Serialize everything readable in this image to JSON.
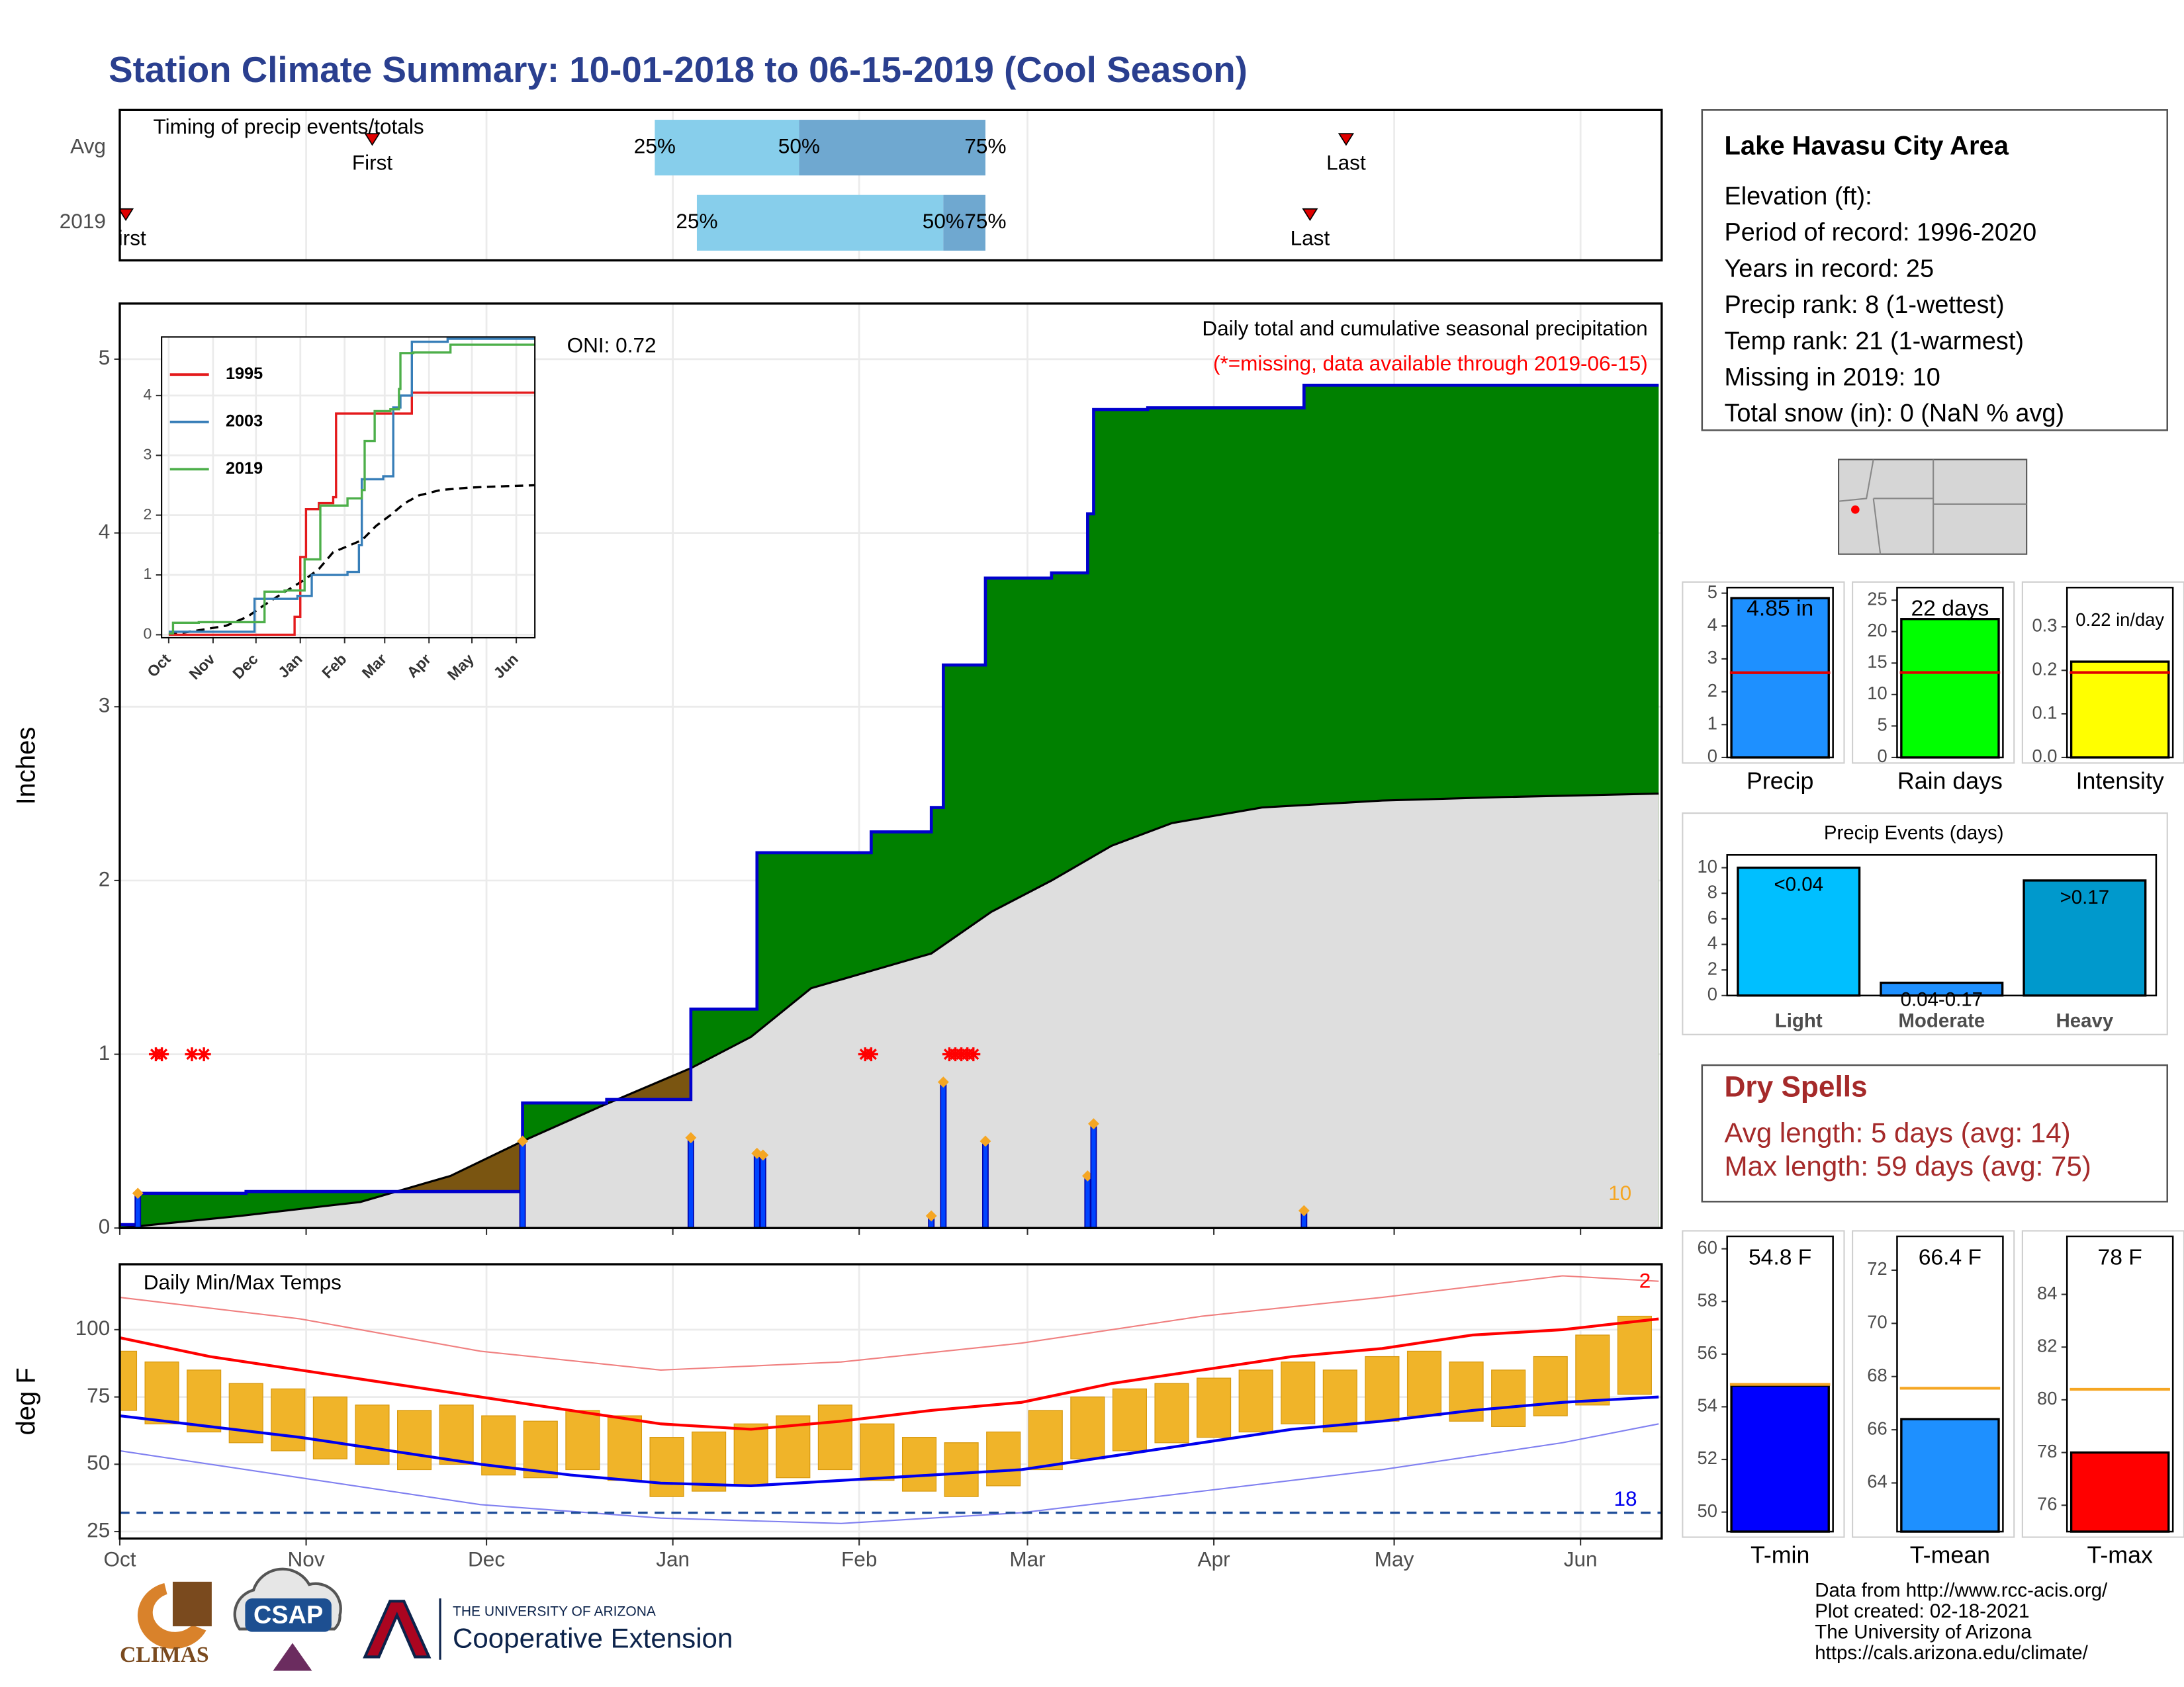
{
  "title": "Station Climate Summary: 10-01-2018 to 06-15-2019 (Cool Season)",
  "station": {
    "title": "Lake Havasu City Area",
    "lines": [
      "Elevation (ft):",
      "Period of record: 1996-2020",
      "Years in record: 25",
      "Precip rank: 8 (1-wettest)",
      "Temp rank: 21 (1-warmest)",
      "Missing in 2019: 10",
      "Total snow (in): 0 (NaN % avg)"
    ]
  },
  "dry_spells": {
    "title": "Dry Spells",
    "lines": [
      "Avg length: 5 days (avg: 14)",
      "Max length: 59 days (avg: 75)"
    ]
  },
  "footer": {
    "lines": [
      "Data from http://www.rcc-acis.org/",
      "Plot created: 02-18-2021",
      "The University of Arizona",
      "https://cals.arizona.edu/climate/"
    ]
  },
  "logos": {
    "climas": "CLIMAS",
    "csap": "CSAP",
    "ua": "THE UNIVERSITY OF ARIZONA",
    "extension": "Cooperative Extension"
  },
  "chart_data": [
    {
      "type": "timeline",
      "title": "Timing of precip events/totals",
      "categories": [
        "Avg",
        "2019"
      ],
      "first": [
        42,
        1
      ],
      "last": [
        204,
        198
      ],
      "first_label": "First",
      "last_label": "Last",
      "q25": [
        89,
        96
      ],
      "q50": [
        113,
        137
      ],
      "q75": [
        144,
        144
      ],
      "q_labels": [
        "25%",
        "50%",
        "75%"
      ],
      "colors": [
        "#87ceeb",
        "#6fa8d0"
      ],
      "marker_color": "#e00000",
      "xlim": [
        0,
        256.5
      ],
      "xticks": [
        0,
        31,
        61,
        92,
        123,
        151,
        182,
        212,
        243
      ]
    },
    {
      "type": "step_area",
      "title": "Daily total and cumulative seasonal precipitation",
      "subtitle": "(*=missing, data available through 2019-06-15)",
      "annotation": "ONI: 0.72",
      "ylabel": "Inches",
      "missing_count": 10,
      "cumulative": {
        "color": "#0000cd",
        "x": [
          0,
          3,
          21,
          67,
          81,
          95,
          106,
          125,
          135,
          137,
          144,
          155,
          161,
          162,
          171,
          197,
          256
        ],
        "values": [
          0.02,
          0.2,
          0.21,
          0.72,
          0.74,
          1.26,
          2.16,
          2.28,
          2.42,
          3.24,
          3.74,
          3.77,
          4.11,
          4.71,
          4.72,
          4.85,
          4.85
        ]
      },
      "average": {
        "color": "#000000",
        "fill": "#dedede",
        "x": [
          0,
          20,
          40,
          55,
          67,
          80,
          95,
          105,
          115,
          125,
          135,
          145,
          155,
          165,
          175,
          190,
          210,
          230,
          256
        ],
        "values": [
          0,
          0.07,
          0.15,
          0.3,
          0.5,
          0.7,
          0.92,
          1.1,
          1.38,
          1.48,
          1.58,
          1.82,
          2.0,
          2.2,
          2.33,
          2.42,
          2.46,
          2.48,
          2.5
        ]
      },
      "daily": {
        "color": "#0044ff",
        "marker_color": "#f5a623",
        "x": [
          3,
          67,
          95,
          106,
          107,
          135,
          137,
          144,
          161,
          162,
          197
        ],
        "values": [
          0.2,
          0.5,
          0.52,
          0.43,
          0.42,
          0.07,
          0.84,
          0.5,
          0.3,
          0.6,
          0.1
        ]
      },
      "missing": {
        "color": "#ff0000",
        "x": [
          6,
          7,
          12,
          14,
          124,
          125,
          138,
          139,
          140,
          141,
          142
        ],
        "values": [
          1,
          1,
          1,
          1,
          1,
          1,
          1,
          1,
          1,
          1,
          1
        ]
      },
      "above_color": "#008000",
      "below_color": "#7a5511",
      "xlim": [
        0,
        256.5
      ],
      "xticks": [
        0,
        31,
        61,
        92,
        123,
        151,
        182,
        212,
        243
      ],
      "ylim": [
        0,
        5.32
      ],
      "yticks": [
        0,
        1,
        2,
        3,
        4,
        5
      ],
      "grid": true
    },
    {
      "type": "line",
      "series": [
        {
          "name": "1995",
          "color": "#e41a1c",
          "x": [
            0,
            85,
            88,
            92,
            96,
            105,
            115,
            117,
            143,
            170,
            256
          ],
          "values": [
            0,
            0,
            0.3,
            1.3,
            2.1,
            2.2,
            2.3,
            3.7,
            3.7,
            4.05,
            4.05
          ]
        },
        {
          "name": "2003",
          "color": "#377eb8",
          "x": [
            0,
            60,
            90,
            100,
            125,
            133,
            135,
            150,
            157,
            162,
            170,
            195,
            256
          ],
          "values": [
            0.05,
            0.6,
            0.65,
            1.0,
            1.05,
            1.5,
            2.6,
            2.65,
            3.8,
            4.0,
            4.9,
            4.95,
            4.95
          ]
        },
        {
          "name": "2019",
          "color": "#4daf4a",
          "x": [
            0,
            3,
            21,
            67,
            81,
            95,
            106,
            125,
            135,
            137,
            144,
            155,
            161,
            162,
            171,
            197,
            256
          ],
          "values": [
            0.02,
            0.2,
            0.21,
            0.72,
            0.74,
            1.26,
            2.16,
            2.28,
            2.42,
            3.24,
            3.74,
            3.77,
            4.11,
            4.71,
            4.72,
            4.85,
            4.85
          ]
        }
      ],
      "average": {
        "color": "#000000",
        "x": [
          0,
          20,
          40,
          55,
          67,
          80,
          95,
          105,
          115,
          125,
          135,
          145,
          155,
          165,
          175,
          190,
          210,
          230,
          256
        ],
        "values": [
          0,
          0.07,
          0.15,
          0.3,
          0.5,
          0.7,
          0.92,
          1.1,
          1.38,
          1.48,
          1.58,
          1.82,
          2.0,
          2.2,
          2.33,
          2.42,
          2.46,
          2.48,
          2.5
        ]
      },
      "xlim": [
        -5,
        256
      ],
      "xticks": [
        {
          "value": 0,
          "label": "Oct"
        },
        {
          "value": 31,
          "label": "Nov"
        },
        {
          "value": 61,
          "label": "Dec"
        },
        {
          "value": 92,
          "label": "Jan"
        },
        {
          "value": 123,
          "label": "Feb"
        },
        {
          "value": 151,
          "label": "Mar"
        },
        {
          "value": 182,
          "label": "Apr"
        },
        {
          "value": 212,
          "label": "May"
        },
        {
          "value": 243,
          "label": "Jun"
        }
      ],
      "ylim": [
        -0.05,
        4.98
      ],
      "yticks": [
        0,
        1,
        2,
        3,
        4
      ],
      "grid": true,
      "legend": "top-left"
    },
    {
      "type": "range_bar",
      "title": "Daily Min/Max Temps",
      "ylabel": "deg F",
      "color": "#f0b429",
      "x": [
        0,
        7,
        14,
        21,
        28,
        35,
        42,
        49,
        56,
        63,
        70,
        77,
        84,
        91,
        98,
        105,
        112,
        119,
        126,
        133,
        140,
        147,
        154,
        161,
        168,
        175,
        182,
        189,
        196,
        203,
        210,
        217,
        224,
        231,
        238,
        245,
        252
      ],
      "high": [
        92,
        88,
        85,
        80,
        78,
        75,
        72,
        70,
        72,
        68,
        66,
        70,
        68,
        60,
        62,
        65,
        68,
        72,
        65,
        60,
        58,
        62,
        70,
        75,
        78,
        80,
        82,
        85,
        88,
        85,
        90,
        92,
        88,
        85,
        90,
        98,
        105
      ],
      "low": [
        70,
        65,
        62,
        58,
        55,
        52,
        50,
        48,
        50,
        46,
        45,
        48,
        44,
        38,
        40,
        42,
        45,
        48,
        44,
        40,
        38,
        42,
        48,
        52,
        55,
        58,
        60,
        62,
        65,
        62,
        66,
        68,
        66,
        64,
        68,
        72,
        76
      ],
      "avg_high": {
        "color": "#ff0000",
        "x": [
          0,
          15,
          30,
          45,
          60,
          75,
          90,
          105,
          120,
          135,
          150,
          165,
          180,
          195,
          210,
          225,
          240,
          256
        ],
        "values": [
          97,
          90,
          85,
          80,
          75,
          70,
          65,
          63,
          66,
          70,
          73,
          80,
          85,
          90,
          93,
          98,
          100,
          104
        ]
      },
      "avg_low": {
        "color": "#0000ee",
        "x": [
          0,
          15,
          30,
          45,
          60,
          75,
          90,
          105,
          120,
          135,
          150,
          165,
          180,
          195,
          210,
          225,
          240,
          256
        ],
        "values": [
          68,
          64,
          60,
          55,
          50,
          46,
          43,
          42,
          44,
          46,
          48,
          53,
          58,
          63,
          66,
          70,
          73,
          75
        ]
      },
      "record_high": {
        "color": "#f08080",
        "x": [
          0,
          30,
          60,
          90,
          120,
          150,
          180,
          210,
          240,
          256
        ],
        "values": [
          112,
          104,
          92,
          85,
          88,
          95,
          105,
          112,
          120,
          118
        ]
      },
      "record_low": {
        "color": "#8080f0",
        "x": [
          0,
          30,
          60,
          90,
          120,
          150,
          180,
          210,
          240,
          256
        ],
        "values": [
          55,
          45,
          35,
          30,
          28,
          32,
          40,
          48,
          58,
          65
        ]
      },
      "freeze": 32,
      "freeze_color": "#1f4e99",
      "record_high_count": 2,
      "record_low_count": 18,
      "xlim": [
        0,
        256.5
      ],
      "xticks": [
        {
          "value": 0,
          "label": "Oct"
        },
        {
          "value": 31,
          "label": "Nov"
        },
        {
          "value": 61,
          "label": "Dec"
        },
        {
          "value": 92,
          "label": "Jan"
        },
        {
          "value": 123,
          "label": "Feb"
        },
        {
          "value": 151,
          "label": "Mar"
        },
        {
          "value": 182,
          "label": "Apr"
        },
        {
          "value": 212,
          "label": "May"
        },
        {
          "value": 243,
          "label": "Jun"
        }
      ],
      "ylim": [
        22.4,
        124.3
      ],
      "yticks": [
        25,
        50,
        75,
        100
      ],
      "grid": true
    },
    {
      "type": "bar",
      "categories": [
        "Precip"
      ],
      "values": [
        4.85
      ],
      "value_labels": [
        "4.85 in"
      ],
      "average": 2.58,
      "average_color": "#e00000",
      "color": "#1e90ff",
      "ylim": [
        0,
        5.17
      ],
      "yticks": [
        0,
        1,
        2,
        3,
        4,
        5
      ]
    },
    {
      "type": "bar",
      "categories": [
        "Rain days"
      ],
      "values": [
        22
      ],
      "value_labels": [
        "22 days"
      ],
      "average": 13.5,
      "average_color": "#e00000",
      "color": "#00ff00",
      "ylim": [
        0,
        27
      ],
      "yticks": [
        0,
        5,
        10,
        15,
        20,
        25
      ]
    },
    {
      "type": "bar",
      "categories": [
        "Intensity"
      ],
      "values": [
        0.22
      ],
      "value_labels": [
        "0.22 in/day"
      ],
      "average": 0.195,
      "average_color": "#e00000",
      "color": "#ffff00",
      "ylim": [
        0,
        0.39
      ],
      "yticks": [
        {
          "value": 0,
          "label": "0.0"
        },
        0.1,
        0.2,
        0.3
      ]
    },
    {
      "type": "bar",
      "title": "Precip Events (days)",
      "categories": [
        "Light",
        "Moderate",
        "Heavy"
      ],
      "values": [
        10,
        1,
        9
      ],
      "bin_labels": [
        "<0.04",
        "0.04-0.17",
        ">0.17"
      ],
      "colors": [
        "#00bfff",
        "#1e90ff",
        "#0099cc"
      ],
      "ylim": [
        0,
        11
      ],
      "yticks": [
        0,
        2,
        4,
        6,
        8,
        10
      ]
    },
    {
      "type": "bar",
      "categories": [
        "T-min"
      ],
      "values": [
        54.8
      ],
      "value_labels": [
        "54.8 F"
      ],
      "average": 54.85,
      "average_color": "#f5a623",
      "color": "#0000ff",
      "ylim": [
        49.26,
        60.47
      ],
      "yticks": [
        50,
        52,
        54,
        56,
        58,
        60
      ]
    },
    {
      "type": "bar",
      "categories": [
        "T-mean"
      ],
      "values": [
        66.4
      ],
      "value_labels": [
        "66.4 F"
      ],
      "average": 67.56,
      "average_color": "#f5a623",
      "color": "#1e90ff",
      "ylim": [
        62.17,
        73.27
      ],
      "yticks": [
        64,
        66,
        68,
        70,
        72
      ]
    },
    {
      "type": "bar",
      "categories": [
        "T-max"
      ],
      "values": [
        78
      ],
      "value_labels": [
        "78 F"
      ],
      "average": 80.4,
      "average_color": "#f5a623",
      "color": "#ff0000",
      "ylim": [
        75.0,
        86.2
      ],
      "yticks": [
        76,
        78,
        80,
        82,
        84
      ]
    }
  ]
}
